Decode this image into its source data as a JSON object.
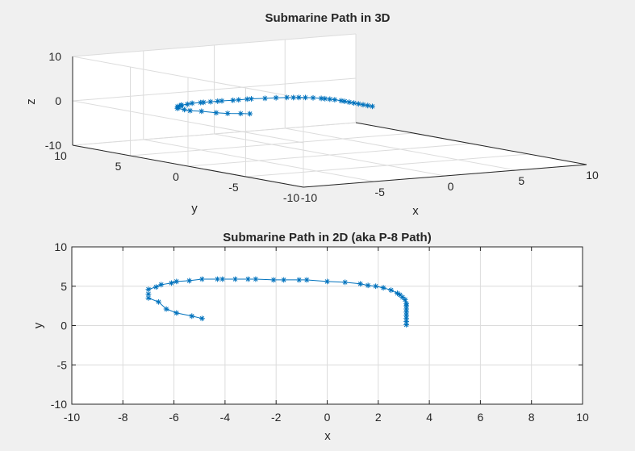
{
  "chart_data": [
    {
      "type": "line",
      "projection": "3d",
      "title": "Submarine Path in 3D",
      "xlabel": "x",
      "ylabel": "y",
      "zlabel": "z",
      "xlim": [
        -10,
        10
      ],
      "ylim": [
        -10,
        10
      ],
      "zlim": [
        -10,
        10
      ],
      "xticks": [
        "-10",
        "-5",
        "0",
        "5",
        "10"
      ],
      "yticks": [
        "10",
        "5",
        "0",
        "-5",
        "-10"
      ],
      "zticks": [
        "10",
        "0",
        "-10"
      ],
      "grid": true,
      "marker": "*",
      "color": "#0072bd",
      "series": [
        {
          "x": [
            3.1,
            3.1,
            3.1,
            3.1,
            3.1,
            3.1,
            3.1,
            3.1,
            3.05,
            2.95,
            2.85,
            2.75,
            2.5,
            2.2,
            1.9,
            1.6,
            1.3,
            0.7,
            0.0,
            -0.8,
            -1.1,
            -1.7,
            -2.1,
            -2.8,
            -3.1,
            -3.6,
            -4.1,
            -4.3,
            -4.9,
            -5.4,
            -5.9,
            -6.1,
            -6.5,
            -6.7,
            -7.0,
            -7.0,
            -7.0,
            -6.6,
            -6.3,
            -5.9,
            -5.3,
            -4.9
          ],
          "y": [
            0.1,
            0.5,
            0.9,
            1.3,
            1.7,
            2.1,
            2.5,
            2.8,
            3.3,
            3.6,
            3.9,
            4.1,
            4.5,
            4.8,
            5.0,
            5.1,
            5.3,
            5.5,
            5.6,
            5.8,
            5.8,
            5.8,
            5.8,
            5.9,
            5.9,
            5.9,
            5.9,
            5.9,
            5.9,
            5.7,
            5.6,
            5.4,
            5.2,
            4.9,
            4.6,
            4.0,
            3.5,
            3.0,
            2.1,
            1.6,
            1.2,
            0.9
          ],
          "z": [
            0.1,
            0.1,
            0.1,
            0.1,
            0.1,
            0.1,
            0.1,
            0.1,
            0.1,
            0.1,
            0.1,
            0.1,
            0.1,
            0.1,
            0.1,
            0.1,
            0.1,
            0.1,
            0.1,
            0.1,
            0.1,
            0.1,
            0.1,
            0.1,
            0.1,
            0.1,
            0.1,
            0.1,
            0.1,
            0.1,
            0.1,
            0.1,
            0.1,
            0.1,
            0.1,
            0.1,
            0.1,
            0.1,
            0.1,
            0.1,
            0.1,
            0.1
          ]
        }
      ]
    },
    {
      "type": "line",
      "title": "Submarine Path in 2D (aka P-8 Path)",
      "xlabel": "x",
      "ylabel": "y",
      "xlim": [
        -10,
        10
      ],
      "ylim": [
        -10,
        10
      ],
      "xticks": [
        "-10",
        "-8",
        "-6",
        "-4",
        "-2",
        "0",
        "2",
        "4",
        "6",
        "8",
        "10"
      ],
      "yticks": [
        "10",
        "5",
        "0",
        "-5",
        "-10"
      ],
      "grid": true,
      "marker": "*",
      "color": "#0072bd",
      "series": [
        {
          "x": [
            3.1,
            3.1,
            3.1,
            3.1,
            3.1,
            3.1,
            3.1,
            3.1,
            3.05,
            2.95,
            2.85,
            2.75,
            2.5,
            2.2,
            1.9,
            1.6,
            1.3,
            0.7,
            0.0,
            -0.8,
            -1.1,
            -1.7,
            -2.1,
            -2.8,
            -3.1,
            -3.6,
            -4.1,
            -4.3,
            -4.9,
            -5.4,
            -5.9,
            -6.1,
            -6.5,
            -6.7,
            -7.0,
            -7.0,
            -7.0,
            -6.6,
            -6.3,
            -5.9,
            -5.3,
            -4.9
          ],
          "y": [
            0.1,
            0.5,
            0.9,
            1.3,
            1.7,
            2.1,
            2.5,
            2.8,
            3.3,
            3.6,
            3.9,
            4.1,
            4.5,
            4.8,
            5.0,
            5.1,
            5.3,
            5.5,
            5.6,
            5.8,
            5.8,
            5.8,
            5.8,
            5.9,
            5.9,
            5.9,
            5.9,
            5.9,
            5.9,
            5.7,
            5.6,
            5.4,
            5.2,
            4.9,
            4.6,
            4.0,
            3.5,
            3.0,
            2.1,
            1.6,
            1.2,
            0.9
          ]
        }
      ]
    }
  ]
}
